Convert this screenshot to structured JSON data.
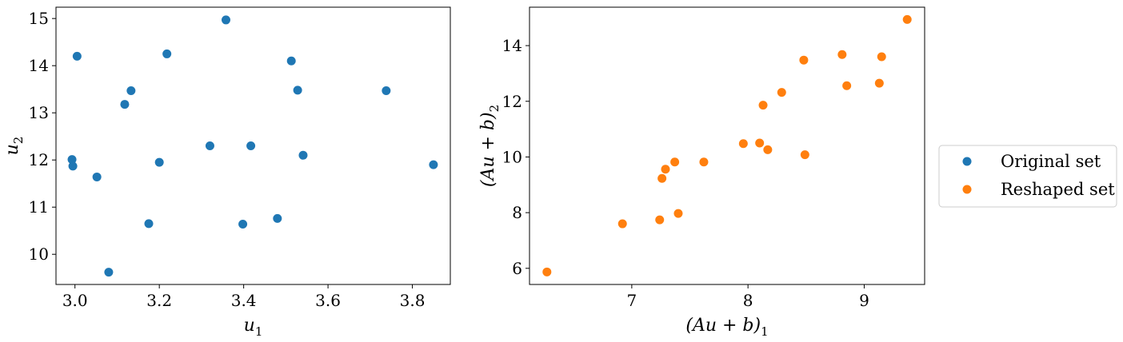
{
  "chart_data": [
    {
      "type": "scatter",
      "title": "",
      "xlabel": "u",
      "xlabel_sub": "1",
      "ylabel": "u",
      "ylabel_sub": "2",
      "xlim": [
        2.955,
        3.89
      ],
      "ylim": [
        9.36,
        15.24
      ],
      "xticks": [
        3.0,
        3.2,
        3.4,
        3.6,
        3.8
      ],
      "xtick_labels": [
        "3.0",
        "3.2",
        "3.4",
        "3.6",
        "3.8"
      ],
      "yticks": [
        10,
        11,
        12,
        13,
        14,
        15
      ],
      "ytick_labels": [
        "10",
        "11",
        "12",
        "13",
        "14",
        "15"
      ],
      "grid": false,
      "series": [
        {
          "name": "Original set",
          "color": "#1f77b4",
          "points": [
            [
              2.993,
              12.01
            ],
            [
              2.995,
              11.87
            ],
            [
              3.005,
              14.2
            ],
            [
              3.052,
              11.64
            ],
            [
              3.08,
              9.62
            ],
            [
              3.118,
              13.18
            ],
            [
              3.133,
              13.47
            ],
            [
              3.175,
              10.65
            ],
            [
              3.2,
              11.95
            ],
            [
              3.218,
              14.25
            ],
            [
              3.32,
              12.3
            ],
            [
              3.358,
              14.97
            ],
            [
              3.398,
              10.64
            ],
            [
              3.417,
              12.3
            ],
            [
              3.48,
              10.76
            ],
            [
              3.513,
              14.1
            ],
            [
              3.528,
              13.48
            ],
            [
              3.541,
              12.1
            ],
            [
              3.738,
              13.47
            ],
            [
              3.85,
              11.9
            ]
          ]
        }
      ]
    },
    {
      "type": "scatter",
      "title": "",
      "xlabel": "(Au + b)",
      "xlabel_sub": "1",
      "ylabel": "(Au + b)",
      "ylabel_sub": "2",
      "xlim": [
        6.12,
        9.52
      ],
      "ylim": [
        5.42,
        15.38
      ],
      "xticks": [
        7,
        8,
        9
      ],
      "xtick_labels": [
        "7",
        "8",
        "9"
      ],
      "yticks": [
        6,
        8,
        10,
        12,
        14
      ],
      "ytick_labels": [
        "6",
        "8",
        "10",
        "12",
        "14"
      ],
      "grid": false,
      "series": [
        {
          "name": "Reshaped set",
          "color": "#ff7f0e",
          "points": [
            [
              6.27,
              5.87
            ],
            [
              6.92,
              7.6
            ],
            [
              7.24,
              7.74
            ],
            [
              7.26,
              9.23
            ],
            [
              7.29,
              9.56
            ],
            [
              7.37,
              9.82
            ],
            [
              7.4,
              7.97
            ],
            [
              7.62,
              9.82
            ],
            [
              7.96,
              10.48
            ],
            [
              8.1,
              10.5
            ],
            [
              8.13,
              11.86
            ],
            [
              8.17,
              10.26
            ],
            [
              8.29,
              12.32
            ],
            [
              8.48,
              13.48
            ],
            [
              8.49,
              10.08
            ],
            [
              8.81,
              13.68
            ],
            [
              8.85,
              12.56
            ],
            [
              9.13,
              12.65
            ],
            [
              9.15,
              13.6
            ],
            [
              9.37,
              14.94
            ]
          ]
        }
      ]
    }
  ],
  "legend": {
    "placement": "right",
    "entries": [
      {
        "label": "Original set",
        "color": "#1f77b4"
      },
      {
        "label": "Reshaped set",
        "color": "#ff7f0e"
      }
    ]
  }
}
